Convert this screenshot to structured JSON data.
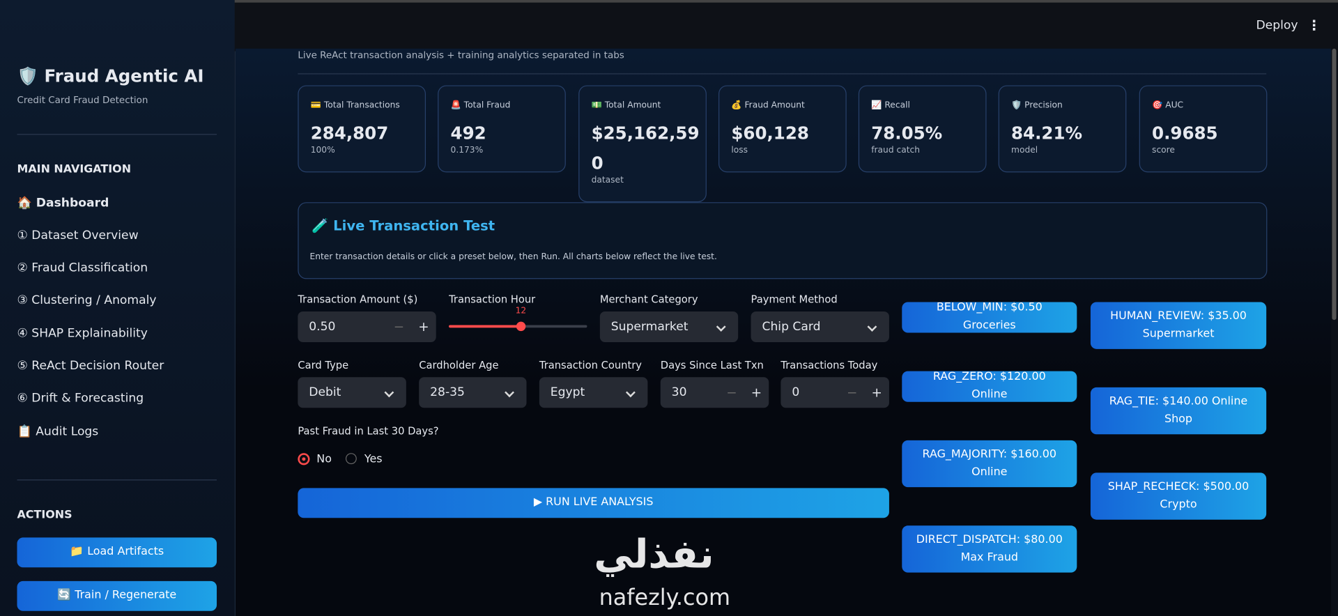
{
  "sidebar": {
    "title": "🛡️ Fraud Agentic AI",
    "subtitle": "Credit Card Fraud Detection",
    "nav_heading": "MAIN NAVIGATION",
    "nav": [
      "🏠 Dashboard",
      "① Dataset Overview",
      "② Fraud Classification",
      "③ Clustering / Anomaly",
      "④ SHAP Explainability",
      "⑤ ReAct Decision Router",
      "⑥ Drift & Forecasting",
      "📋 Audit Logs"
    ],
    "actions_heading": "ACTIONS",
    "actions": [
      "📁 Load Artifacts",
      "🔄 Train / Regenerate"
    ]
  },
  "header": {
    "deploy": "Deploy",
    "menu": "⋮"
  },
  "subtitle": "Live ReAct transaction analysis + training analytics separated in tabs",
  "metrics": [
    {
      "label": "💳 Total Transactions",
      "value": "284,807",
      "sub": "100%"
    },
    {
      "label": "🚨 Total Fraud",
      "value": "492",
      "sub": "0.173%"
    },
    {
      "label": "💵 Total Amount",
      "value": "$25,162,590",
      "sub": "dataset"
    },
    {
      "label": "💰 Fraud Amount",
      "value": "$60,128",
      "sub": "loss"
    },
    {
      "label": "📈 Recall",
      "value": "78.05%",
      "sub": "fraud catch"
    },
    {
      "label": "🛡️ Precision",
      "value": "84.21%",
      "sub": "model"
    },
    {
      "label": "🎯 AUC",
      "value": "0.9685",
      "sub": "score"
    }
  ],
  "live_test": {
    "title": "🧪 Live Transaction Test",
    "description": "Enter transaction details or click a preset below, then Run. All charts below reflect the live test."
  },
  "form": {
    "amount": {
      "label": "Transaction Amount ($)",
      "value": "0.50"
    },
    "hour": {
      "label": "Transaction Hour",
      "value": "12"
    },
    "merchant": {
      "label": "Merchant Category",
      "value": "Supermarket"
    },
    "payment": {
      "label": "Payment Method",
      "value": "Chip Card"
    },
    "card": {
      "label": "Card Type",
      "value": "Debit"
    },
    "age": {
      "label": "Cardholder Age",
      "value": "28-35"
    },
    "country": {
      "label": "Transaction Country",
      "value": "Egypt"
    },
    "days": {
      "label": "Days Since Last Txn",
      "value": "30"
    },
    "today": {
      "label": "Transactions Today",
      "value": "0"
    },
    "past_fraud": {
      "label": "Past Fraud in Last 30 Days?",
      "options": [
        "No",
        "Yes"
      ]
    },
    "minus": "−",
    "plus": "+",
    "run": "▶ RUN LIVE ANALYSIS"
  },
  "presets": [
    "BELOW_MIN: $0.50 Groceries",
    "HUMAN_REVIEW: $35.00 Supermarket",
    "RAG_ZERO: $120.00 Online",
    "RAG_TIE: $140.00 Online Shop",
    "RAG_MAJORITY: $160.00 Online",
    "SHAP_RECHECK: $500.00 Crypto",
    "DIRECT_DISPATCH: $80.00 Max Fraud"
  ],
  "watermark": {
    "arabic": "نفذلي",
    "latin": "nafezly.com"
  }
}
